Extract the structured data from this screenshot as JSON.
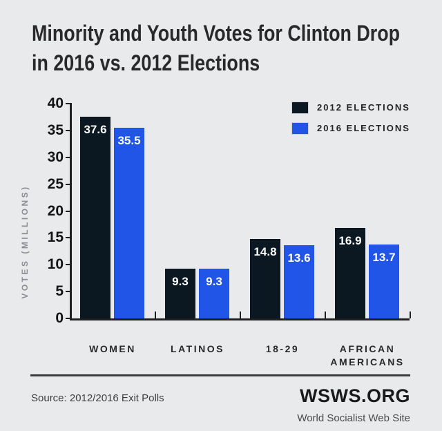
{
  "title": {
    "line1": "Minority and Youth Votes for Clinton Drop",
    "line2": "in 2016 vs. 2012 Elections"
  },
  "chart_data": {
    "type": "bar",
    "categories": [
      "WOMEN",
      "LATINOS",
      "18-29",
      "AFRICAN AMERICANS"
    ],
    "series": [
      {
        "name": "2012 ELECTIONS",
        "color": "#0b1822",
        "values": [
          37.6,
          9.3,
          14.8,
          16.9
        ]
      },
      {
        "name": "2016 ELECTIONS",
        "color": "#2155e8",
        "values": [
          35.5,
          9.3,
          13.6,
          13.7
        ]
      }
    ],
    "title": "Minority and Youth Votes for Clinton Drop in 2016 vs. 2012 Elections",
    "xlabel": "",
    "ylabel": "VOTES (MILLIONS)",
    "ylim": [
      0,
      40
    ],
    "yticks": [
      0,
      5,
      10,
      15,
      20,
      25,
      30,
      35,
      40
    ],
    "grid": false,
    "legend_position": "top-right",
    "value_labels": true
  },
  "footer": {
    "source": "Source: 2012/2016 Exit Polls",
    "brand": "WSWS.ORG",
    "brand_sub": "World Socialist Web Site"
  },
  "colors": {
    "background": "#e9eaeb",
    "bar_2012": "#0b1822",
    "bar_2016": "#2155e8",
    "axis": "#1f1f1f",
    "title_text": "#29292b",
    "value_label_text": "#ffffff",
    "y_axis_title_text": "#8a8e93"
  }
}
